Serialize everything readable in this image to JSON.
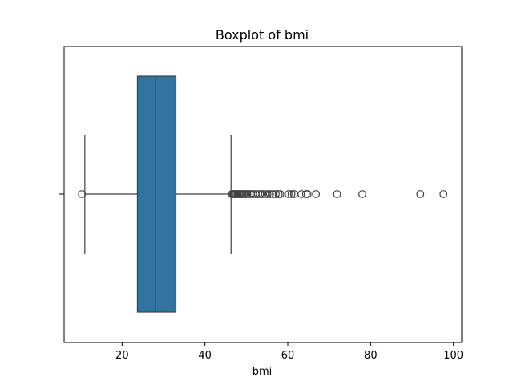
{
  "chart_data": {
    "type": "boxplot",
    "title": "Boxplot of bmi",
    "xlabel": "bmi",
    "ylabel": "",
    "xlim": [
      6,
      102
    ],
    "xticks": [
      20,
      40,
      60,
      80,
      100
    ],
    "grid": false,
    "orientation": "horizontal",
    "series": [
      {
        "name": "bmi",
        "whisker_low": 11.0,
        "q1": 23.7,
        "median": 28.1,
        "q3": 33.0,
        "whisker_high": 46.3,
        "outliers": [
          10.3,
          46.5,
          46.8,
          47.0,
          47.3,
          47.6,
          47.9,
          48.2,
          48.5,
          48.8,
          49.1,
          49.4,
          49.8,
          50.2,
          50.6,
          51.1,
          51.6,
          52.2,
          52.8,
          53.3,
          53.9,
          54.5,
          55.1,
          55.7,
          56.4,
          57.1,
          57.8,
          58.2,
          60.2,
          60.9,
          61.5,
          63.3,
          64.4,
          64.8,
          66.8,
          71.9,
          78.0,
          92.0,
          97.6
        ],
        "color": "#3274a1"
      }
    ]
  }
}
